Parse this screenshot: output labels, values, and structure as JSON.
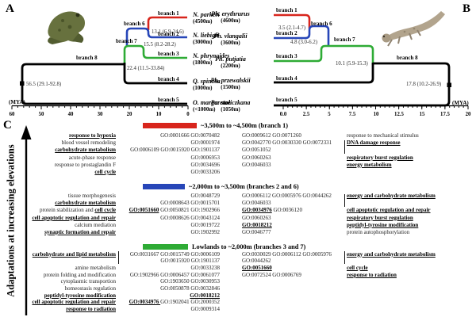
{
  "colors": {
    "red": "#d8251c",
    "blue": "#2746b8",
    "green": "#2eab35",
    "black": "#000000"
  },
  "panels": {
    "a": "A",
    "b": "B",
    "c": "C"
  },
  "panel_a": {
    "mya_label": "(MYA)",
    "ticks": [
      "60",
      "50",
      "40",
      "30",
      "20",
      "10",
      "0"
    ],
    "species": [
      {
        "name": "N. parkeri",
        "elevation": "(4500m)"
      },
      {
        "name": "N. liebigii",
        "elevation": "(3000m)"
      },
      {
        "name": "N. phrynoides",
        "elevation": "(1800m)"
      },
      {
        "name": "Q. spinosa",
        "elevation": "(1000m)"
      },
      {
        "name": "O. margaretae",
        "elevation": "(<1000m)"
      }
    ],
    "branch_labels": [
      "branch 1",
      "branch 2",
      "branch 3",
      "branch 4",
      "branch 5",
      "branch 6",
      "branch 7",
      "branch 8"
    ],
    "node_labels": [
      "13.1 (6.9-24.6)",
      "15.5 (8.2-28.2)",
      "22.4 (11.5-33.84)",
      "56.5 (29.1-92.8)"
    ]
  },
  "panel_b": {
    "mya_label": "(MYA)",
    "ticks": [
      "0.0",
      "2.5",
      "5",
      "7.5",
      "10",
      "12.5",
      "15",
      "17.5",
      "20"
    ],
    "species": [
      {
        "name": "Ph. erythrurus",
        "elevation": "(4600m)"
      },
      {
        "name": "Ph. vlangalii",
        "elevation": "(3600m)"
      },
      {
        "name": "Ph. putjatia",
        "elevation": "(2200m)"
      },
      {
        "name": "Ph. przewalskii",
        "elevation": "(1500m)"
      },
      {
        "name": "Pa. stoliczkana",
        "elevation": "(1050m)"
      }
    ],
    "branch_labels": [
      "branch 1",
      "branch 2",
      "branch 3",
      "branch 4",
      "branch 5",
      "branch 6",
      "branch 7",
      "branch 8"
    ],
    "node_labels": [
      "3.5 (2.1-4.7)",
      "4.8 (3.0-6.2)",
      "10.1 (5.9-15.3)",
      "17.8 (10.2-26.9)"
    ]
  },
  "panel_c": {
    "axis_label": "Adaptations at increasing elevations",
    "sections": [
      {
        "title": "~3,500m to ~4,500m (branch 1)",
        "color": "#d8251c",
        "rows": [
          {
            "c0": [
              {
                "t": "response to hypoxia",
                "u": 1
              }
            ],
            "c1": [
              {
                "t": "GO:0001666 GO:0070482"
              }
            ],
            "c2": [
              {
                "t": "GO:0009612 GO:0071260"
              }
            ],
            "c3": [
              {
                "t": "response to mechanical stimulus"
              }
            ]
          },
          {
            "c0": [
              {
                "t": "blood vessel remodeling"
              }
            ],
            "c1": [
              {
                "t": "GO:0001974"
              }
            ],
            "c2": [
              {
                "t": "GO:0042770 GO:0030330 GO:0072331"
              }
            ],
            "c3": [
              {
                "t": "DNA damage response",
                "u": 1
              }
            ]
          },
          {
            "c0": [
              {
                "t": "carbohydrate metabolism",
                "u": 1
              }
            ],
            "c1": [
              {
                "t": "GO:0006109 GO:0015920 GO:1901137"
              }
            ],
            "c2": [
              {
                "t": "GO:0051052"
              }
            ],
            "c3": []
          },
          {
            "c0": [
              {
                "t": "acute-phase response"
              }
            ],
            "c1": [
              {
                "t": "GO:0006953"
              }
            ],
            "c2": [
              {
                "t": "GO:0060263"
              }
            ],
            "c3": [
              {
                "t": "respiratory burst regulation",
                "u": 1
              }
            ]
          },
          {
            "c0": [
              {
                "t": "response to prostaglandin F"
              }
            ],
            "c1": [
              {
                "t": "GO:0034696"
              }
            ],
            "c2": [
              {
                "t": "GO:0046033"
              }
            ],
            "c3": [
              {
                "t": "energy metabolism",
                "u": 1
              }
            ]
          },
          {
            "c0": [
              {
                "t": "cell cycle",
                "u": 1
              }
            ],
            "c1": [
              {
                "t": "GO:0033206"
              }
            ],
            "c2": [],
            "c3": []
          }
        ]
      },
      {
        "title": "~2,000m to ~3,500m (branches 2 and 6)",
        "color": "#2746b8",
        "rows": [
          {
            "c0": [
              {
                "t": "tissue morphogenesis"
              }
            ],
            "c1": [
              {
                "t": "GO:0048729"
              }
            ],
            "c2": [
              {
                "t": "GO:0006112 GO:0005976 GO:0044262"
              }
            ],
            "c3": [
              {
                "t": "energy and carbohydrate metabolism",
                "u": 1
              }
            ]
          },
          {
            "c0": [
              {
                "t": "carbohydrate metabolism",
                "u": 1
              }
            ],
            "c1": [
              {
                "t": "GO:0008643 GO:0015701"
              }
            ],
            "c2": [
              {
                "t": "GO:0046033"
              }
            ],
            "c3": []
          },
          {
            "c0": [
              {
                "t": "protein stabilization and "
              },
              {
                "t": "cell cycle",
                "u": 1
              }
            ],
            "c1": [
              {
                "t": "GO:0051660",
                "u": 1
              },
              {
                "t": " GO:0050821 GO:1902966"
              }
            ],
            "c2": [
              {
                "t": "GO:0034976",
                "u": 1
              },
              {
                "t": " GO:0036120"
              }
            ],
            "c3": [
              {
                "t": "cell apoptotic regulation and repair",
                "u": 1
              }
            ]
          },
          {
            "c0": [
              {
                "t": "cell apoptotic regulation and repair",
                "u": 1
              }
            ],
            "c1": [
              {
                "t": "GO:0008626 GO:0043124"
              }
            ],
            "c2": [
              {
                "t": "GO:0060263"
              }
            ],
            "c3": [
              {
                "t": "respiratory burst regulation",
                "u": 1
              }
            ]
          },
          {
            "c0": [
              {
                "t": "calcium mediation"
              }
            ],
            "c1": [
              {
                "t": "GO:0019722"
              }
            ],
            "c2": [
              {
                "t": "GO:0018212",
                "u": 1
              }
            ],
            "c3": [
              {
                "t": "peptidyl-tyrosine modification",
                "u": 1
              }
            ]
          },
          {
            "c0": [
              {
                "t": "synaptic formation and repair",
                "u": 1
              }
            ],
            "c1": [
              {
                "t": "GO:1902992"
              }
            ],
            "c2": [
              {
                "t": "GO:0046777"
              }
            ],
            "c3": [
              {
                "t": "protein autophosphorylation"
              }
            ]
          }
        ]
      },
      {
        "title": "Lowlands to ~2,000m (branches 3 and 7)",
        "color": "#2eab35",
        "rows": [
          {
            "c0": [
              {
                "t": "carbohydrate and lipid metabolism",
                "u": 1
              }
            ],
            "c1": [
              {
                "t": "GO:0031667 GO:0015749 GO:0006109"
              }
            ],
            "c2": [
              {
                "t": "GO:0030029 GO:0006112 GO:0005976"
              }
            ],
            "c3": [
              {
                "t": "energy and carbohydrate metabolism",
                "u": 1
              }
            ]
          },
          {
            "c0": [],
            "c1": [
              {
                "t": "GO:0015920 GO:1901137"
              }
            ],
            "c2": [
              {
                "t": "GO:0044262"
              }
            ],
            "c3": []
          },
          {
            "c0": [
              {
                "t": "amine metabolism"
              }
            ],
            "c1": [
              {
                "t": "GO:0033238"
              }
            ],
            "c2": [
              {
                "t": "GO:0051660",
                "u": 1
              }
            ],
            "c3": [
              {
                "t": "cell cycle",
                "u": 1
              }
            ]
          },
          {
            "c0": [
              {
                "t": "protein folding and modification"
              }
            ],
            "c1": [
              {
                "t": "GO:1902966 GO:0006457 GO:0061077"
              }
            ],
            "c2": [
              {
                "t": "GO:0072524 GO:0006769"
              }
            ],
            "c3": [
              {
                "t": "response to radiation",
                "u": 1
              }
            ]
          },
          {
            "c0": [
              {
                "t": "cytoplasmic transportion"
              }
            ],
            "c1": [
              {
                "t": "GO:1903650 GO:0030953"
              }
            ],
            "c2": [],
            "c3": []
          },
          {
            "c0": [
              {
                "t": "homeostasis regulation"
              }
            ],
            "c1": [
              {
                "t": "GO:0050878 GO:0032846"
              }
            ],
            "c2": [],
            "c3": []
          },
          {
            "c0": [
              {
                "t": "peptidyl-tyrosine modification",
                "u": 1
              }
            ],
            "c1": [
              {
                "t": "GO:0018212",
                "u": 1
              }
            ],
            "c2": [],
            "c3": []
          },
          {
            "c0": [
              {
                "t": "cell apoptotic regulation and repair",
                "u": 1
              }
            ],
            "c1": [
              {
                "t": "GO:0034976 ",
                "u": 1
              },
              {
                "t": "GO:1902041 GO:2000352"
              }
            ],
            "c2": [],
            "c3": []
          },
          {
            "c0": [
              {
                "t": "response to radiation",
                "u": 1
              }
            ],
            "c1": [
              {
                "t": "GO:0009314"
              }
            ],
            "c2": [],
            "c3": []
          }
        ]
      }
    ]
  }
}
